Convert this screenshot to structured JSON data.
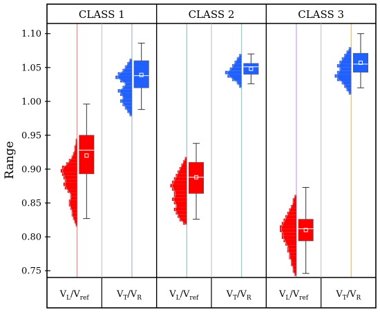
{
  "chart_data": {
    "type": "box+histogram",
    "ylabel": "Range",
    "ylim": [
      0.74,
      1.115
    ],
    "yticks": [
      "0.75",
      "0.80",
      "0.85",
      "0.90",
      "0.95",
      "1.00",
      "1.05",
      "1.10"
    ],
    "classes": [
      "CLASS 1",
      "CLASS 2",
      "CLASS 3"
    ],
    "categories": [
      {
        "main": "V",
        "sub1": "L",
        "sep": "/V",
        "sub2": "ref"
      },
      {
        "main": "V",
        "sub1": "T",
        "sep": "/V",
        "sub2": "R"
      },
      {
        "main": "V",
        "sub1": "L",
        "sep": "/V",
        "sub2": "ref"
      },
      {
        "main": "V",
        "sub1": "T",
        "sep": "/V",
        "sub2": "R"
      },
      {
        "main": "V",
        "sub1": "L",
        "sep": "/V",
        "sub2": "ref"
      },
      {
        "main": "V",
        "sub1": "T",
        "sep": "/V",
        "sub2": "R"
      }
    ],
    "series": [
      {
        "class": "CLASS 1",
        "category": "VL/Vref",
        "color": "#ff0000",
        "line_color": "#ff8080",
        "whisker_low": 0.827,
        "q1": 0.893,
        "median": 0.928,
        "mean": 0.92,
        "q3": 0.95,
        "whisker_high": 0.996,
        "hist": {
          "bin": 0.005,
          "start": 0.815,
          "counts": [
            1,
            2,
            3,
            4,
            4,
            5,
            6,
            6,
            5,
            5,
            7,
            9,
            10,
            9,
            10,
            11,
            12,
            11,
            8,
            6,
            4,
            3,
            2,
            2,
            1,
            1
          ]
        }
      },
      {
        "class": "CLASS 1",
        "category": "VT/VR",
        "color": "#2060ff",
        "line_color": "#a0b8c8",
        "whisker_low": 0.988,
        "q1": 1.02,
        "median": 1.038,
        "mean": 1.039,
        "q3": 1.06,
        "whisker_high": 1.086,
        "hist": {
          "bin": 0.005,
          "start": 0.978,
          "counts": [
            1,
            2,
            3,
            4,
            5,
            4,
            5,
            6,
            4,
            3,
            5,
            7,
            6,
            4,
            3,
            2,
            1
          ]
        }
      },
      {
        "class": "CLASS 2",
        "category": "VL/Vref",
        "color": "#ff0000",
        "line_color": "#9bbad8",
        "whisker_low": 0.826,
        "q1": 0.864,
        "median": 0.888,
        "mean": 0.888,
        "q3": 0.91,
        "whisker_high": 0.938,
        "hist": {
          "bin": 0.005,
          "start": 0.818,
          "counts": [
            2,
            4,
            5,
            6,
            7,
            6,
            7,
            8,
            7,
            7,
            8,
            9,
            8,
            7,
            6,
            5,
            4,
            3,
            2,
            1
          ]
        }
      },
      {
        "class": "CLASS 2",
        "category": "VT/VR",
        "color": "#2060ff",
        "line_color": "#88d0c8",
        "whisker_low": 1.026,
        "q1": 1.04,
        "median": 1.051,
        "mean": 1.048,
        "q3": 1.056,
        "whisker_high": 1.07,
        "hist": {
          "bin": 0.005,
          "start": 1.02,
          "counts": [
            1,
            2,
            4,
            6,
            7,
            5,
            4,
            3,
            2,
            1
          ]
        }
      },
      {
        "class": "CLASS 3",
        "category": "VL/Vref",
        "color": "#ff0000",
        "line_color": "#c8a0e0",
        "whisker_low": 0.746,
        "q1": 0.794,
        "median": 0.812,
        "mean": 0.81,
        "q3": 0.826,
        "whisker_high": 0.873,
        "hist": {
          "bin": 0.005,
          "start": 0.742,
          "counts": [
            1,
            2,
            2,
            3,
            3,
            4,
            4,
            5,
            5,
            6,
            7,
            8,
            8,
            9,
            9,
            8,
            7,
            6,
            5,
            4,
            3,
            2,
            2,
            1
          ]
        }
      },
      {
        "class": "CLASS 3",
        "category": "VT/VR",
        "color": "#2060ff",
        "line_color": "#e0c070",
        "whisker_low": 1.02,
        "q1": 1.043,
        "median": 1.055,
        "mean": 1.057,
        "q3": 1.071,
        "whisker_high": 1.1,
        "hist": {
          "bin": 0.005,
          "start": 1.01,
          "counts": [
            1,
            2,
            3,
            4,
            6,
            7,
            6,
            5,
            6,
            5,
            4,
            3,
            2,
            1
          ]
        }
      }
    ]
  }
}
